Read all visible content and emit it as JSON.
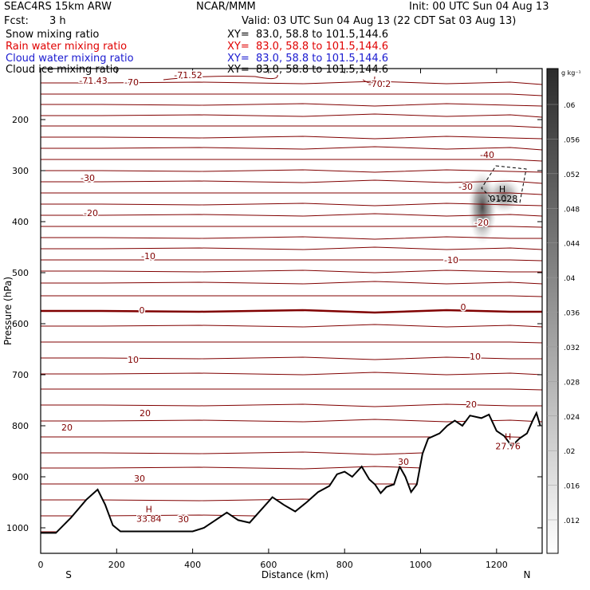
{
  "header": {
    "model": "SEAC4RS 15km ARW",
    "org": "NCAR/MMM",
    "init": "Init: 00 UTC Sun 04 Aug 13",
    "fcst_label": "Fcst:",
    "fcst_value": "3 h",
    "valid": "Valid: 03 UTC Sun 04 Aug 13 (22 CDT Sat 03 Aug 13)",
    "fields": [
      {
        "name": "Snow mixing ratio",
        "xy": "XY=  83.0, 58.8 to 101.5,144.6",
        "color": "#000000"
      },
      {
        "name": "Rain water mixing ratio",
        "xy": "XY=  83.0, 58.8 to 101.5,144.6",
        "color": "#e00000"
      },
      {
        "name": "Cloud water mixing ratio",
        "xy": "XY=  83.0, 58.8 to 101.5,144.6",
        "color": "#1a1ad0"
      },
      {
        "name": "Cloud ice mixing ratio",
        "xy": "XY=  83.0, 58.8 to 101.5,144.6",
        "color": "#000000"
      }
    ]
  },
  "chart_data": {
    "type": "contour",
    "xlabel": "Distance (km)",
    "ylabel": "Pressure (hPa)",
    "xlim": [
      0,
      1320
    ],
    "ylim": [
      1050,
      100
    ],
    "x_ticks": [
      0,
      200,
      400,
      600,
      800,
      1000,
      1200
    ],
    "y_ticks": [
      200,
      300,
      400,
      500,
      600,
      700,
      800,
      900,
      1000
    ],
    "x_endpoints": {
      "left": "S",
      "right": "N"
    },
    "colorbar": {
      "unit": "g kg⁻¹",
      "ticks": [
        ".012",
        ".016",
        ".02",
        ".024",
        ".028",
        ".032",
        ".036",
        ".04",
        ".044",
        ".048",
        ".052",
        ".056",
        ".06"
      ]
    },
    "temperature_contour_labels": [
      "-71.43",
      "-70",
      "-71.52",
      "-70.2",
      "-40",
      "-30",
      "-30",
      "-20",
      "-20",
      "-10",
      "-10",
      "0",
      "0",
      "10",
      "10",
      "20",
      "20",
      "20",
      "30",
      "30",
      "30"
    ],
    "extrema": [
      {
        "label": "H",
        "value": "33.84",
        "x_km": 285,
        "p_hpa": 982
      },
      {
        "label": "H",
        "value": "27.76",
        "x_km": 1230,
        "p_hpa": 840
      },
      {
        "label": "H",
        "value": ".01028",
        "x_km": 1215,
        "p_hpa": 355
      }
    ],
    "terrain": [
      [
        0,
        1010
      ],
      [
        40,
        1010
      ],
      [
        80,
        980
      ],
      [
        120,
        945
      ],
      [
        150,
        925
      ],
      [
        170,
        955
      ],
      [
        190,
        995
      ],
      [
        210,
        1007
      ],
      [
        280,
        1007
      ],
      [
        350,
        1007
      ],
      [
        400,
        1007
      ],
      [
        430,
        1000
      ],
      [
        460,
        985
      ],
      [
        490,
        970
      ],
      [
        520,
        985
      ],
      [
        550,
        990
      ],
      [
        580,
        965
      ],
      [
        610,
        940
      ],
      [
        640,
        955
      ],
      [
        670,
        968
      ],
      [
        700,
        950
      ],
      [
        730,
        930
      ],
      [
        760,
        918
      ],
      [
        780,
        895
      ],
      [
        800,
        890
      ],
      [
        820,
        900
      ],
      [
        845,
        880
      ],
      [
        865,
        905
      ],
      [
        880,
        915
      ],
      [
        895,
        932
      ],
      [
        910,
        920
      ],
      [
        930,
        915
      ],
      [
        945,
        880
      ],
      [
        960,
        900
      ],
      [
        975,
        930
      ],
      [
        990,
        915
      ],
      [
        1005,
        855
      ],
      [
        1020,
        825
      ],
      [
        1050,
        815
      ],
      [
        1070,
        800
      ],
      [
        1090,
        790
      ],
      [
        1110,
        800
      ],
      [
        1130,
        780
      ],
      [
        1160,
        785
      ],
      [
        1180,
        778
      ],
      [
        1200,
        810
      ],
      [
        1220,
        820
      ],
      [
        1240,
        840
      ],
      [
        1260,
        825
      ],
      [
        1280,
        815
      ],
      [
        1295,
        790
      ],
      [
        1305,
        775
      ],
      [
        1315,
        800
      ]
    ]
  }
}
